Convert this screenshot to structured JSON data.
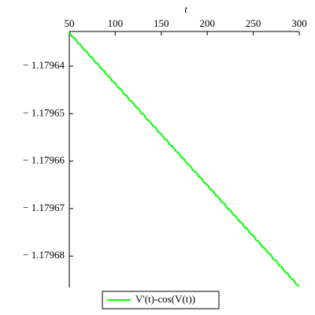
{
  "chart_data": {
    "type": "line",
    "xlabel": "t",
    "x": [
      50,
      53.125,
      56.25,
      59.375,
      62.5,
      65.625,
      68.75,
      71.875,
      75,
      78.125,
      81.25,
      84.375,
      87.5,
      90.625,
      93.75,
      96.875,
      100,
      103.125,
      106.25,
      109.375,
      112.5,
      115.625,
      118.75,
      121.875,
      125,
      128.125,
      131.25,
      134.375,
      137.5,
      140.625,
      143.75,
      146.875,
      150,
      153.125,
      156.25,
      159.375,
      162.5,
      165.625,
      168.75,
      171.875,
      175,
      178.125,
      181.25,
      184.375,
      187.5,
      190.625,
      193.75,
      196.875,
      200,
      203.125,
      206.25,
      209.375,
      212.5,
      215.625,
      218.75,
      221.875,
      225,
      228.125,
      231.25,
      234.375,
      237.5,
      240.625,
      243.75,
      246.875,
      250,
      253.125,
      256.25,
      259.375,
      262.5,
      265.625,
      268.75,
      271.875,
      275,
      278.125,
      281.25,
      284.375,
      287.5,
      290.625,
      293.75,
      296.875,
      300
    ],
    "series": [
      {
        "name": "V'(t)-cos(V(t))",
        "color": "#00ff00",
        "values": [
          -1.17963285,
          -1.17963382,
          -1.17963419,
          -1.17963516,
          -1.17963553,
          -1.17963649,
          -1.17963686,
          -1.17963783,
          -1.1796382,
          -1.17963917,
          -1.17963954,
          -1.17964051,
          -1.17964088,
          -1.17964184,
          -1.17964221,
          -1.17964318,
          -1.17964355,
          -1.17964452,
          -1.17964489,
          -1.17964586,
          -1.17964623,
          -1.17964719,
          -1.17964756,
          -1.17964853,
          -1.1796489,
          -1.17964987,
          -1.17965024,
          -1.17965121,
          -1.17965158,
          -1.17965254,
          -1.17965291,
          -1.17965388,
          -1.17965425,
          -1.17965522,
          -1.17965559,
          -1.17965656,
          -1.17965693,
          -1.17965789,
          -1.17965826,
          -1.17965923,
          -1.1796596,
          -1.17966057,
          -1.17966094,
          -1.17966191,
          -1.17966228,
          -1.17966324,
          -1.17966361,
          -1.17966458,
          -1.17966495,
          -1.17966592,
          -1.17966629,
          -1.17966726,
          -1.17966763,
          -1.17966859,
          -1.17966896,
          -1.17966993,
          -1.1796703,
          -1.17967127,
          -1.17967164,
          -1.17967261,
          -1.17967298,
          -1.17967394,
          -1.17967431,
          -1.17967528,
          -1.17967565,
          -1.17967662,
          -1.17967699,
          -1.17967796,
          -1.17967833,
          -1.17967929,
          -1.17967966,
          -1.17968063,
          -1.179681,
          -1.17968197,
          -1.17968234,
          -1.17968331,
          -1.17968368,
          -1.17968464,
          -1.17968501,
          -1.17968598,
          -1.17968635
        ]
      }
    ],
    "xlim": [
      50,
      300
    ],
    "xticks": [
      50,
      100,
      150,
      200,
      250,
      300
    ],
    "ylim": [
      -1.1796866,
      -1.1796327
    ],
    "yticks": [
      {
        "value": -1.17964,
        "label": "− 1.17964"
      },
      {
        "value": -1.17965,
        "label": "− 1.17965"
      },
      {
        "value": -1.17966,
        "label": "− 1.17966"
      },
      {
        "value": -1.17967,
        "label": "− 1.17967"
      },
      {
        "value": -1.17968,
        "label": "− 1.17968"
      }
    ],
    "legend": "bottom"
  }
}
